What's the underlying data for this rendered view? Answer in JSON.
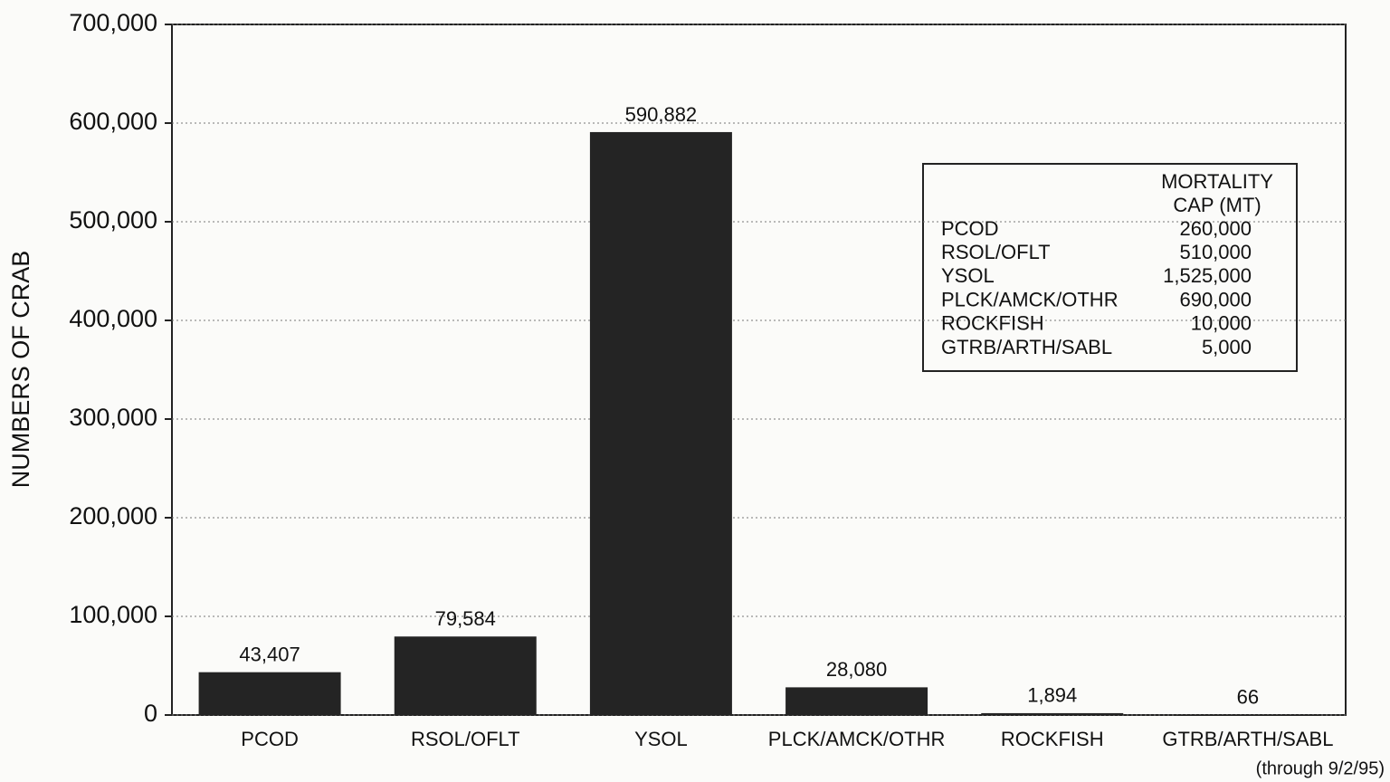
{
  "chart_data": {
    "type": "bar",
    "ylabel": "NUMBERS OF CRAB",
    "categories": [
      "PCOD",
      "RSOL/OFLT",
      "YSOL",
      "PLCK/AMCK/OTHR",
      "ROCKFISH",
      "GTRB/ARTH/SABL"
    ],
    "values": [
      43407,
      79584,
      590882,
      28080,
      1894,
      66
    ],
    "value_labels": [
      "43,407",
      "79,584",
      "590,882",
      "28,080",
      "1,894",
      "66"
    ],
    "color": "#242424",
    "ylim": [
      0,
      700000
    ],
    "yticks": [
      0,
      {
        "value": 100000,
        "label": "100,000"
      },
      {
        "value": 200000,
        "label": "200,000"
      },
      {
        "value": 300000,
        "label": "300,000"
      },
      {
        "value": 400000,
        "label": "400,000"
      },
      {
        "value": 500000,
        "label": "500,000"
      },
      {
        "value": 600000,
        "label": "600,000"
      },
      {
        "value": 700000,
        "label": "700,000"
      }
    ],
    "grid": true,
    "footnote": "(through 9/2/95)",
    "cap_table": {
      "header": [
        "MORTALITY",
        "CAP (MT)"
      ],
      "rows": [
        [
          "PCOD",
          "260,000"
        ],
        [
          "RSOL/OFLT",
          "510,000"
        ],
        [
          "YSOL",
          "1,525,000"
        ],
        [
          "PLCK/AMCK/OTHR",
          "690,000"
        ],
        [
          "ROCKFISH",
          "10,000"
        ],
        [
          "GTRB/ARTH/SABL",
          "5,000"
        ]
      ]
    }
  }
}
